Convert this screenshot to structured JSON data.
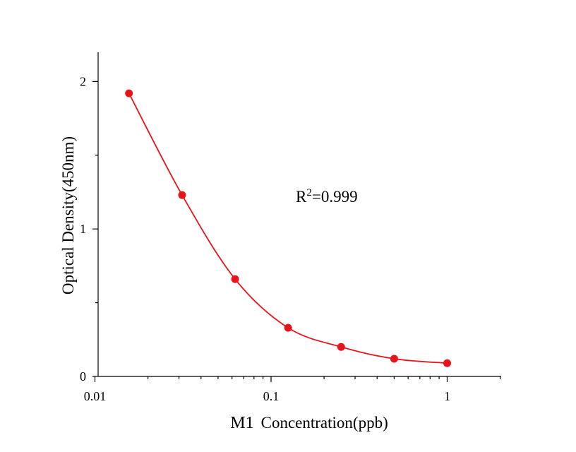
{
  "chart_data": {
    "type": "scatter",
    "title": "",
    "xlabel_prefix": "M1",
    "xlabel": "Concentration(ppb)",
    "ylabel": "Optical Density(450nm)",
    "xscale": "log",
    "xlim": [
      0.01,
      2
    ],
    "ylim": [
      0,
      2.2
    ],
    "xticks": [
      {
        "value": 0.01,
        "label": "0.01"
      },
      {
        "value": 0.1,
        "label": "0.1"
      },
      {
        "value": 1,
        "label": "1"
      }
    ],
    "yticks": [
      {
        "value": 0,
        "label": "0"
      },
      {
        "value": 1,
        "label": "1"
      },
      {
        "value": 2,
        "label": "2"
      }
    ],
    "series": [
      {
        "x": [
          0.0156,
          0.03125,
          0.0625,
          0.125,
          0.25,
          0.5,
          1
        ],
        "y": [
          1.92,
          1.23,
          0.66,
          0.33,
          0.2,
          0.12,
          0.09
        ]
      }
    ],
    "annotation": {
      "base": "R",
      "sup": "2",
      "rest": "=0.999"
    },
    "colors": {
      "series": "#e8141c",
      "axis": "#000000"
    },
    "grid": false,
    "legend": "none"
  }
}
